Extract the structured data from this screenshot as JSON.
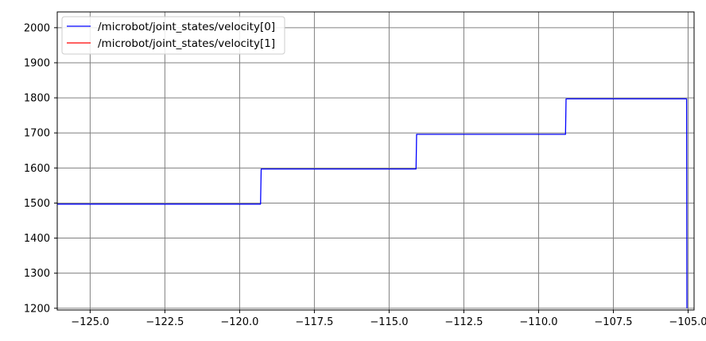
{
  "chart_data": {
    "type": "line",
    "title": "",
    "xlabel": "",
    "ylabel": "",
    "xlim": [
      -126.1,
      -104.8
    ],
    "ylim": [
      1195,
      2045
    ],
    "grid": true,
    "legend_position": "top-left",
    "x_ticks": [
      -125.0,
      -122.5,
      -120.0,
      -117.5,
      -115.0,
      -112.5,
      -110.0,
      -107.5,
      -105.0
    ],
    "x_tick_labels": [
      "−125.0",
      "−122.5",
      "−120.0",
      "−117.5",
      "−115.0",
      "−112.5",
      "−110.0",
      "−107.5",
      "−105.0"
    ],
    "y_ticks": [
      1200,
      1300,
      1400,
      1500,
      1600,
      1700,
      1800,
      1900,
      2000
    ],
    "y_tick_labels": [
      "1200",
      "1300",
      "1400",
      "1500",
      "1600",
      "1700",
      "1800",
      "1900",
      "2000"
    ],
    "series": [
      {
        "name": "/microbot/joint_states/velocity[0]",
        "color": "#0000ff",
        "x": [
          -126.1,
          -119.3,
          -119.28,
          -114.1,
          -114.08,
          -109.1,
          -109.08,
          -105.05,
          -105.04
        ],
        "y": [
          1497,
          1497,
          1597,
          1597,
          1696,
          1696,
          1797,
          1797,
          1200
        ]
      },
      {
        "name": "/microbot/joint_states/velocity[1]",
        "color": "#ff0000",
        "x": [],
        "y": []
      }
    ]
  }
}
